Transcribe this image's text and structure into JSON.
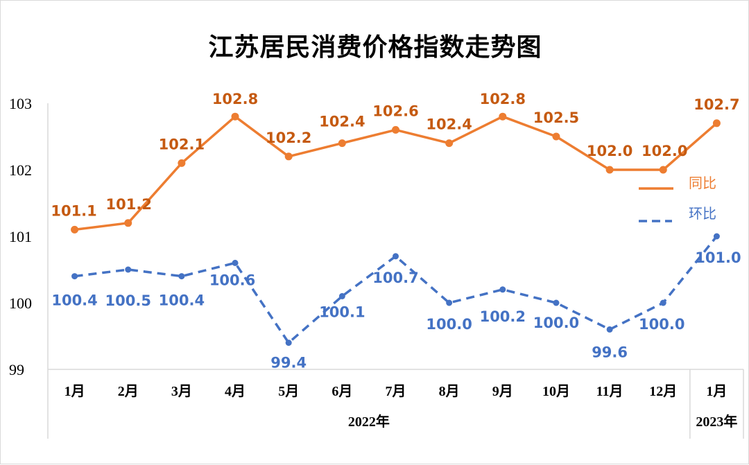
{
  "chart_data": {
    "type": "line",
    "title": "江苏居民消费价格指数走势图",
    "categories": [
      "1月",
      "2月",
      "3月",
      "4月",
      "5月",
      "6月",
      "7月",
      "8月",
      "9月",
      "10月",
      "11月",
      "12月",
      "1月"
    ],
    "category_groups": [
      {
        "label": "2022年",
        "start": 0,
        "end": 11
      },
      {
        "label": "2023年",
        "start": 12,
        "end": 12
      }
    ],
    "series": [
      {
        "name": "同比",
        "color": "#ed7d31",
        "label_color": "#c55a11",
        "style": "solid",
        "values": [
          101.1,
          101.2,
          102.1,
          102.8,
          102.2,
          102.4,
          102.6,
          102.4,
          102.8,
          102.5,
          102.0,
          102.0,
          102.7
        ],
        "labels": [
          "101.1",
          "101.2",
          "102.1",
          "102.8",
          "102.2",
          "102.4",
          "102.6",
          "102.4",
          "102.8",
          "102.5",
          "102.0",
          "102.0",
          "102.7"
        ]
      },
      {
        "name": "环比",
        "color": "#4472c4",
        "label_color": "#4472c4",
        "style": "dashed",
        "values": [
          100.4,
          100.5,
          100.4,
          100.6,
          99.4,
          100.1,
          100.7,
          100.0,
          100.2,
          100.0,
          99.6,
          100.0,
          101.0
        ],
        "labels": [
          "100.4",
          "100.5",
          "100.4",
          "100.6",
          "99.4",
          "100.1",
          "100.7",
          "100.0",
          "100.2",
          "100.0",
          "99.6",
          "100.0",
          "101.0"
        ]
      }
    ],
    "xlabel": "",
    "ylabel": "",
    "ylim": [
      99,
      103
    ],
    "yticks": [
      "103",
      "102",
      "101",
      "100",
      "99"
    ],
    "grid": false,
    "legend_position": "right"
  }
}
